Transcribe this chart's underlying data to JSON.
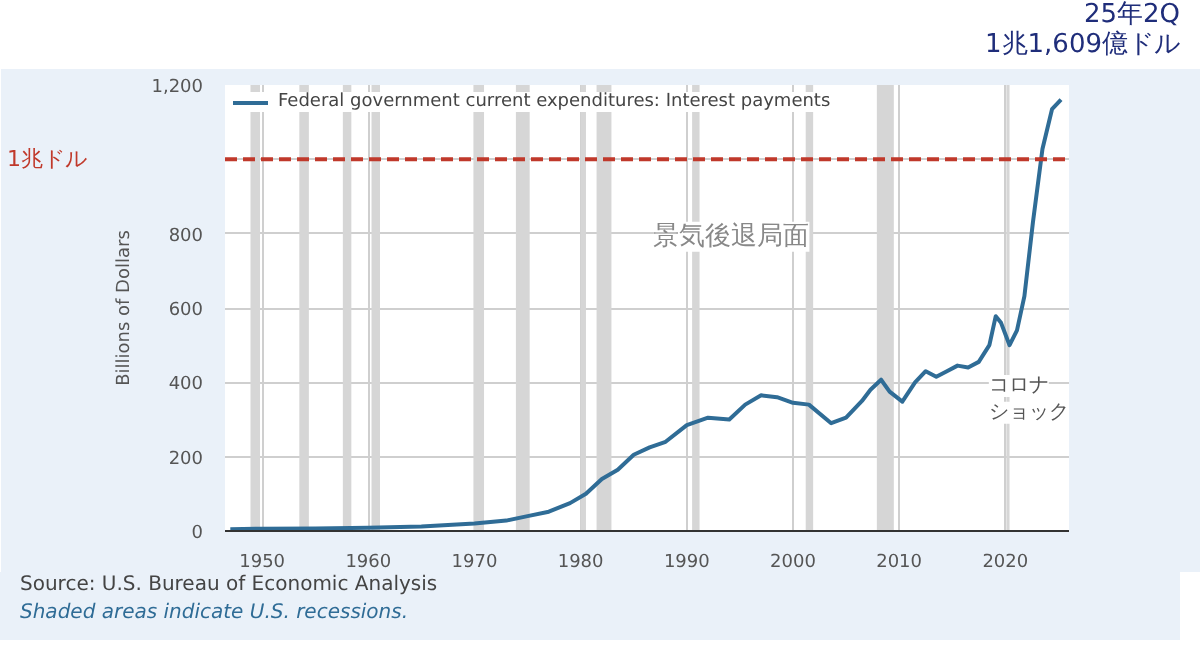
{
  "chart_data": {
    "type": "line",
    "x": [
      1947,
      1950,
      1955,
      1960,
      1965,
      1970,
      1973,
      1975,
      1977,
      1979,
      1980.5,
      1982,
      1983.5,
      1985,
      1986.5,
      1988,
      1990,
      1992,
      1994,
      1995.5,
      1997,
      1998.5,
      2000,
      2001.5,
      2003.6,
      2005,
      2006.5,
      2007.3,
      2008.3,
      2009.1,
      2010.3,
      2011.5,
      2012.5,
      2013.5,
      2014.5,
      2015.5,
      2016.5,
      2017.5,
      2018.5,
      2019.1,
      2019.6,
      2020.4,
      2021.1,
      2021.8,
      2022.6,
      2023.5,
      2024.4,
      2025.25
    ],
    "series": [
      {
        "name": "Federal government current expenditures: Interest payments",
        "color": "#2f6c96",
        "values": [
          5,
          6,
          7,
          9,
          12,
          20,
          28,
          40,
          52,
          75,
          100,
          140,
          165,
          205,
          225,
          240,
          285,
          305,
          300,
          340,
          365,
          360,
          345,
          340,
          290,
          305,
          350,
          380,
          407,
          375,
          348,
          400,
          430,
          415,
          430,
          445,
          440,
          455,
          500,
          578,
          560,
          500,
          540,
          632,
          830,
          1028,
          1135,
          1160.9
        ]
      }
    ],
    "xlim": [
      1946.5,
      2026
    ],
    "ylim": [
      0,
      1200
    ],
    "xticks": [
      1950,
      1960,
      1970,
      1980,
      1990,
      2000,
      2010,
      2020
    ],
    "yticks": [
      0,
      200,
      400,
      600,
      800,
      {
        "value": 1000,
        "label": null
      },
      {
        "value": 1200,
        "label": "1,200"
      }
    ],
    "ylabel": "Billions of Dollars",
    "grid": true,
    "legend": "top left",
    "ref_lines": [
      {
        "axis": "y",
        "value": 1000,
        "label": "1兆ドル",
        "color": "#c0392b",
        "line_style": "dashed"
      }
    ],
    "bands": [
      {
        "axis": "x",
        "from": 1948.9,
        "to": 1949.8,
        "color": "#d6d6d6"
      },
      {
        "axis": "x",
        "from": 1953.5,
        "to": 1954.4,
        "color": "#d6d6d6"
      },
      {
        "axis": "x",
        "from": 1957.6,
        "to": 1958.4,
        "color": "#d6d6d6"
      },
      {
        "axis": "x",
        "from": 1960.3,
        "to": 1961.1,
        "color": "#d6d6d6"
      },
      {
        "axis": "x",
        "from": 1969.9,
        "to": 1970.9,
        "color": "#d6d6d6"
      },
      {
        "axis": "x",
        "from": 1973.9,
        "to": 1975.2,
        "color": "#d6d6d6"
      },
      {
        "axis": "x",
        "from": 1980.0,
        "to": 1980.5,
        "color": "#d6d6d6"
      },
      {
        "axis": "x",
        "from": 1981.5,
        "to": 1982.9,
        "color": "#d6d6d6"
      },
      {
        "axis": "x",
        "from": 1990.5,
        "to": 1991.2,
        "color": "#d6d6d6"
      },
      {
        "axis": "x",
        "from": 2001.2,
        "to": 2001.9,
        "color": "#d6d6d6"
      },
      {
        "axis": "x",
        "from": 2007.9,
        "to": 2009.5,
        "color": "#d6d6d6"
      },
      {
        "axis": "x",
        "from": 2020.1,
        "to": 2020.4,
        "color": "#d6d6d6"
      }
    ],
    "annotations": [
      "コロナ",
      "ショック",
      "景気後退局面",
      "25年2Q\n1兆1,609億ドル",
      "Source: U.S. Bureau of Economic Analysis",
      "Shaded areas indicate U.S. recessions."
    ]
  }
}
